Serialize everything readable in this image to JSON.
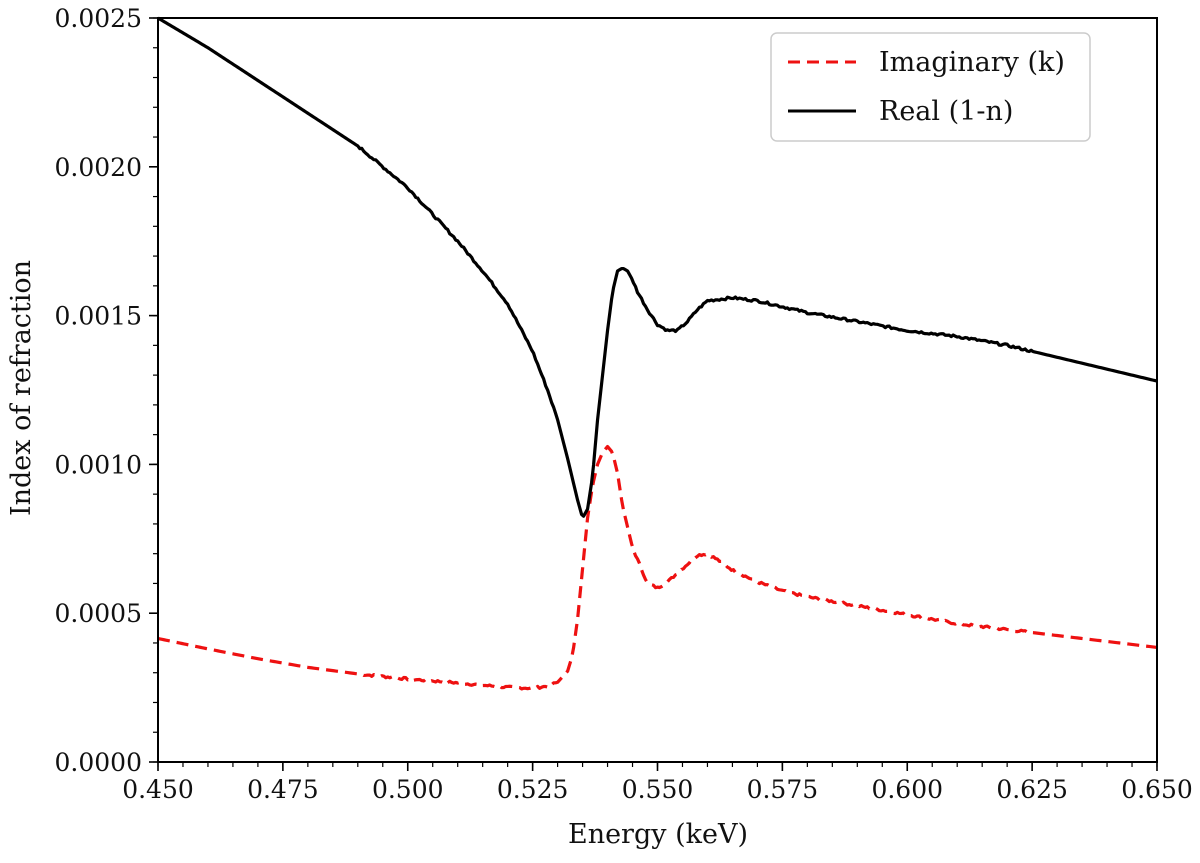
{
  "chart_data": {
    "type": "line",
    "title": "",
    "xlabel": "Energy (keV)",
    "ylabel": "Index of refraction",
    "xlim": [
      0.45,
      0.65
    ],
    "ylim": [
      0.0,
      0.0025
    ],
    "grid": false,
    "legend_position": "top-right",
    "x_ticks": [
      {
        "value": 0.45,
        "label": "0.450"
      },
      {
        "value": 0.475,
        "label": "0.475"
      },
      {
        "value": 0.5,
        "label": "0.500"
      },
      {
        "value": 0.525,
        "label": "0.525"
      },
      {
        "value": 0.55,
        "label": "0.550"
      },
      {
        "value": 0.575,
        "label": "0.575"
      },
      {
        "value": 0.6,
        "label": "0.600"
      },
      {
        "value": 0.625,
        "label": "0.625"
      },
      {
        "value": 0.65,
        "label": "0.650"
      }
    ],
    "y_ticks": [
      {
        "value": 0.0,
        "label": "0.0000"
      },
      {
        "value": 0.0005,
        "label": "0.0005"
      },
      {
        "value": 0.001,
        "label": "0.0010"
      },
      {
        "value": 0.0015,
        "label": "0.0015"
      },
      {
        "value": 0.002,
        "label": "0.0020"
      },
      {
        "value": 0.0025,
        "label": "0.0025"
      }
    ],
    "x_minor_step": 0.005,
    "y_minor_step": 0.0001,
    "series": [
      {
        "name": "Imaginary (k)",
        "color": "#ee1111",
        "style": "dashed",
        "x": [
          0.45,
          0.46,
          0.47,
          0.48,
          0.49,
          0.5,
          0.51,
          0.515,
          0.52,
          0.525,
          0.528,
          0.53,
          0.532,
          0.533,
          0.534,
          0.535,
          0.536,
          0.537,
          0.538,
          0.539,
          0.54,
          0.541,
          0.542,
          0.543,
          0.545,
          0.547,
          0.548,
          0.55,
          0.552,
          0.555,
          0.558,
          0.56,
          0.562,
          0.565,
          0.57,
          0.575,
          0.58,
          0.59,
          0.6,
          0.61,
          0.62,
          0.63,
          0.64,
          0.65
        ],
        "y": [
          0.000415,
          0.00038,
          0.000347,
          0.000318,
          0.000296,
          0.000279,
          0.000266,
          0.000258,
          0.000251,
          0.000248,
          0.000255,
          0.000268,
          0.000305,
          0.00036,
          0.00048,
          0.00065,
          0.00082,
          0.00093,
          0.001,
          0.00104,
          0.00106,
          0.00104,
          0.00097,
          0.00086,
          0.00072,
          0.00064,
          0.0006,
          0.000585,
          0.000605,
          0.00065,
          0.000695,
          0.0007,
          0.00068,
          0.000645,
          0.000605,
          0.000575,
          0.000555,
          0.000525,
          0.000495,
          0.000465,
          0.000445,
          0.000425,
          0.000405,
          0.000385
        ]
      },
      {
        "name": "Real (1-n)",
        "color": "#000000",
        "style": "solid",
        "x": [
          0.45,
          0.46,
          0.47,
          0.48,
          0.49,
          0.5,
          0.505,
          0.51,
          0.515,
          0.52,
          0.525,
          0.528,
          0.53,
          0.532,
          0.534,
          0.535,
          0.536,
          0.537,
          0.538,
          0.539,
          0.54,
          0.541,
          0.542,
          0.543,
          0.544,
          0.545,
          0.546,
          0.548,
          0.55,
          0.552,
          0.554,
          0.556,
          0.558,
          0.56,
          0.565,
          0.57,
          0.575,
          0.58,
          0.59,
          0.6,
          0.61,
          0.62,
          0.63,
          0.64,
          0.65
        ],
        "y": [
          0.0025,
          0.0024,
          0.00229,
          0.00218,
          0.00207,
          0.00193,
          0.00184,
          0.00175,
          0.00165,
          0.00154,
          0.00138,
          0.00125,
          0.00115,
          0.00102,
          0.00088,
          0.00082,
          0.00085,
          0.00096,
          0.00115,
          0.0013,
          0.00145,
          0.00158,
          0.00165,
          0.00166,
          0.00165,
          0.00162,
          0.00158,
          0.00152,
          0.00147,
          0.00145,
          0.00145,
          0.00148,
          0.00152,
          0.00155,
          0.00156,
          0.00155,
          0.00153,
          0.00151,
          0.00148,
          0.00145,
          0.00143,
          0.0014,
          0.00136,
          0.00132,
          0.00128
        ]
      }
    ]
  }
}
